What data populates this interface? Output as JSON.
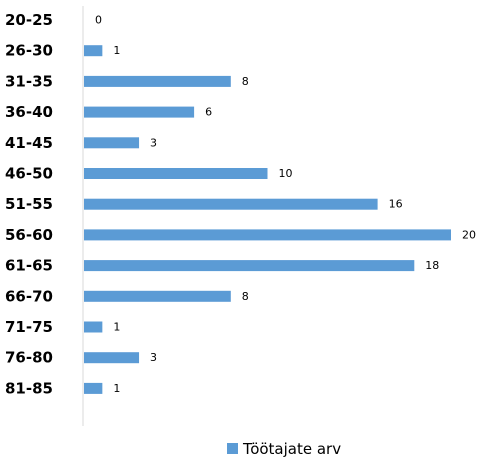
{
  "chart_data": {
    "type": "bar",
    "orientation": "horizontal",
    "categories": [
      "20-25",
      "26-30",
      "31-35",
      "36-40",
      "41-45",
      "46-50",
      "51-55",
      "56-60",
      "61-65",
      "66-70",
      "71-75",
      "76-80",
      "81-85"
    ],
    "series": [
      {
        "name": "Töötajate arv",
        "values": [
          0,
          1,
          8,
          6,
          3,
          10,
          16,
          20,
          18,
          8,
          1,
          3,
          1
        ],
        "color": "#5B9BD5"
      }
    ],
    "data_labels": true,
    "xlim": [
      0,
      20
    ],
    "grid": false,
    "legend": "bottom"
  }
}
